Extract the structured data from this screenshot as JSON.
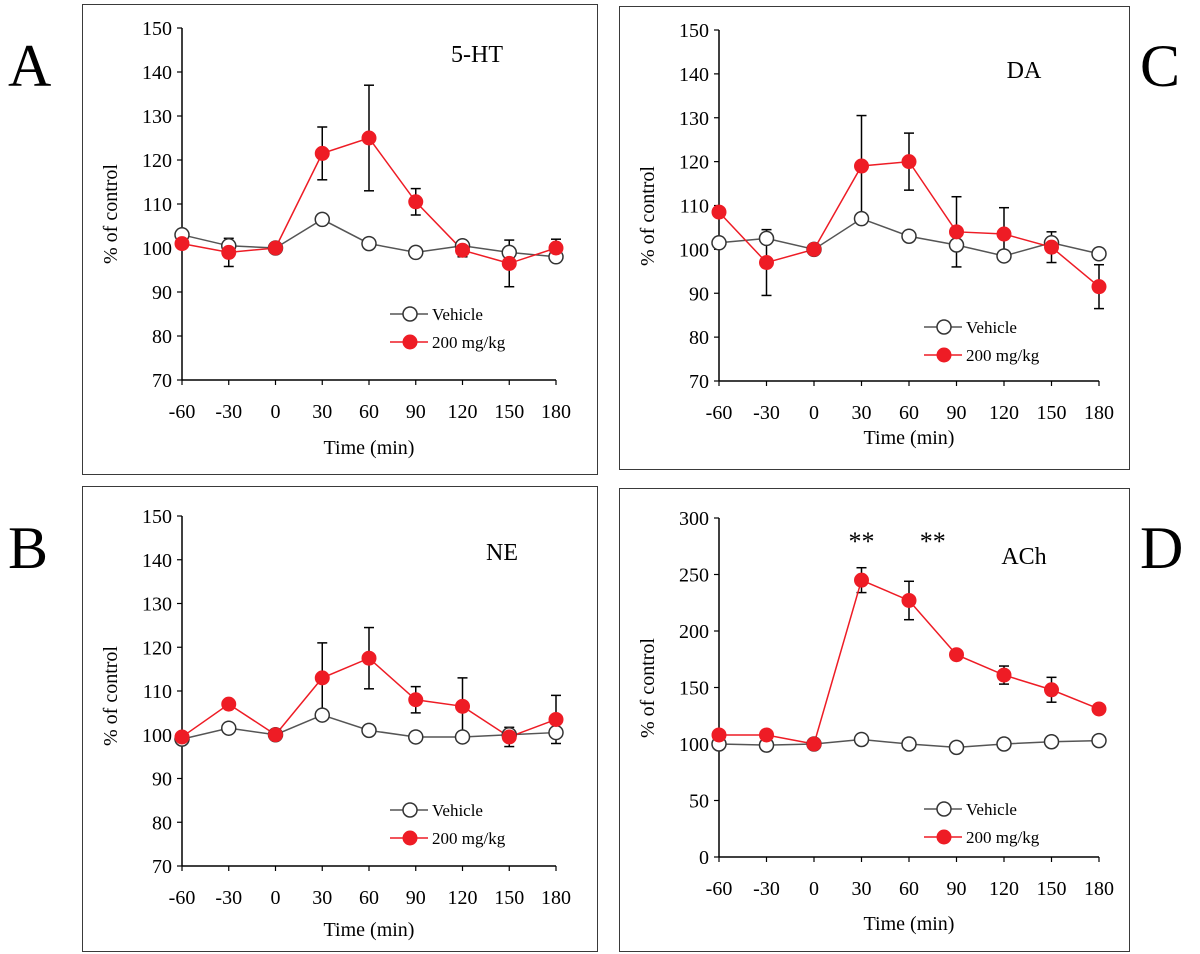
{
  "panel_letters": [
    "A",
    "B",
    "C",
    "D"
  ],
  "series_colors": {
    "vehicle_fill": "#ffffff",
    "vehicle_stroke": "#555555",
    "treated": "#ee1c25"
  },
  "chart_data": [
    {
      "type": "line",
      "panel": "A",
      "title": "5-HT",
      "xlabel": "Time (min)",
      "ylabel": "% of control",
      "x": [
        -60,
        -30,
        0,
        30,
        60,
        90,
        120,
        150,
        180
      ],
      "xticks": [
        "-60",
        "-30",
        "0",
        "30",
        "60",
        "90",
        "120",
        "150",
        "180"
      ],
      "ylim": [
        70,
        150
      ],
      "yticks": [
        "70",
        "80",
        "90",
        "100",
        "110",
        "120",
        "130",
        "140",
        "150"
      ],
      "legend": "bottom-right",
      "annotations": [],
      "series": [
        {
          "name": "Vehicle",
          "values": [
            103,
            100.5,
            100,
            106.5,
            101,
            99,
            100.5,
            99,
            98
          ]
        },
        {
          "name": "200 mg/kg",
          "values": [
            101,
            99,
            100,
            121.5,
            125,
            110.5,
            99.5,
            96.5,
            100
          ],
          "errors": [
            0,
            3.2,
            0,
            6,
            12,
            3,
            1.5,
            5.3,
            2
          ]
        }
      ]
    },
    {
      "type": "line",
      "panel": "B",
      "title": "NE",
      "xlabel": "Time (min)",
      "ylabel": "% of control",
      "x": [
        -60,
        -30,
        0,
        30,
        60,
        90,
        120,
        150,
        180
      ],
      "xticks": [
        "-60",
        "-30",
        "0",
        "30",
        "60",
        "90",
        "120",
        "150",
        "180"
      ],
      "ylim": [
        70,
        150
      ],
      "yticks": [
        "70",
        "80",
        "90",
        "100",
        "110",
        "120",
        "130",
        "140",
        "150"
      ],
      "legend": "bottom-right",
      "annotations": [],
      "series": [
        {
          "name": "Vehicle",
          "values": [
            99,
            101.5,
            100,
            104.5,
            101,
            99.5,
            99.5,
            100,
            100.5
          ]
        },
        {
          "name": "200 mg/kg",
          "values": [
            99.5,
            107,
            100,
            113,
            117.5,
            108,
            106.5,
            99.5,
            103.5
          ],
          "errors": [
            0,
            0,
            0,
            8,
            7,
            3,
            6.5,
            2.2,
            5.5
          ]
        }
      ]
    },
    {
      "type": "line",
      "panel": "C",
      "title": "DA",
      "xlabel": "Time (min)",
      "ylabel": "% of control",
      "x": [
        -60,
        -30,
        0,
        30,
        60,
        90,
        120,
        150,
        180
      ],
      "xticks": [
        "-60",
        "-30",
        "0",
        "30",
        "60",
        "90",
        "120",
        "150",
        "180"
      ],
      "ylim": [
        70,
        150
      ],
      "yticks": [
        "70",
        "80",
        "90",
        "100",
        "110",
        "120",
        "130",
        "140",
        "150"
      ],
      "legend": "bottom-right",
      "annotations": [],
      "series": [
        {
          "name": "Vehicle",
          "values": [
            101.5,
            102.5,
            100,
            107,
            103,
            101,
            98.5,
            101.5,
            99
          ]
        },
        {
          "name": "200 mg/kg",
          "values": [
            108.5,
            97,
            100,
            119,
            120,
            104,
            103.5,
            100.5,
            91.5
          ],
          "errors": [
            0,
            7.5,
            0,
            11.5,
            6.5,
            8,
            6,
            3.5,
            5
          ]
        }
      ]
    },
    {
      "type": "line",
      "panel": "D",
      "title": "ACh",
      "xlabel": "Time (min)",
      "ylabel": "% of control",
      "x": [
        -60,
        -30,
        0,
        30,
        60,
        90,
        120,
        150,
        180
      ],
      "xticks": [
        "-60",
        "-30",
        "0",
        "30",
        "60",
        "90",
        "120",
        "150",
        "180"
      ],
      "ylim": [
        0,
        300
      ],
      "yticks": [
        "0",
        "50",
        "100",
        "150",
        "200",
        "250",
        "300"
      ],
      "legend": "bottom-right",
      "annotations": [
        {
          "text": "**",
          "x": 30
        },
        {
          "text": "**",
          "x": 75
        }
      ],
      "series": [
        {
          "name": "Vehicle",
          "values": [
            100,
            99,
            100,
            104,
            100,
            97,
            100,
            102,
            103
          ]
        },
        {
          "name": "200 mg/kg",
          "values": [
            108,
            108,
            100,
            245,
            227,
            179,
            161,
            148,
            131
          ],
          "errors": [
            0,
            0,
            0,
            11,
            17,
            0,
            8,
            11,
            0
          ]
        }
      ]
    }
  ]
}
